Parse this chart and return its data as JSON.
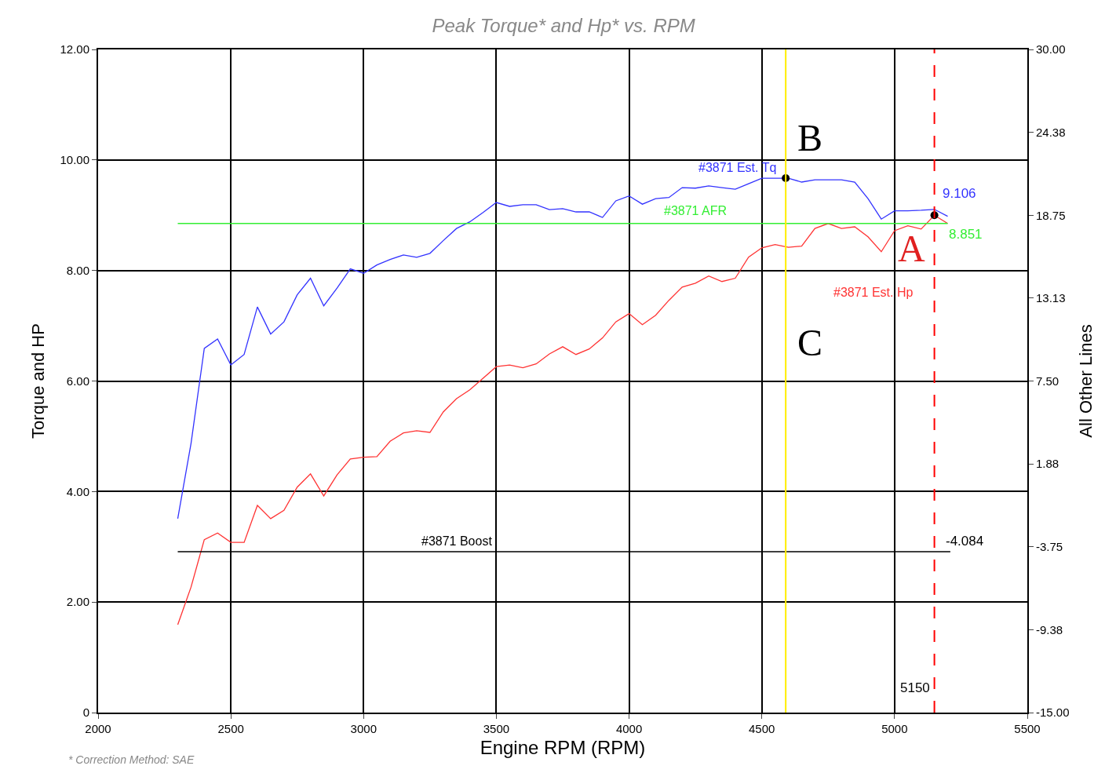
{
  "chart_data": {
    "type": "line",
    "title": "Peak Torque* and Hp* vs. RPM",
    "xlabel": "Engine RPM (RPM)",
    "ylabel": "Torque and HP",
    "y2label": "All Other Lines",
    "x": [
      2300,
      2350,
      2400,
      2450,
      2500,
      2550,
      2600,
      2650,
      2700,
      2750,
      2800,
      2850,
      2900,
      2950,
      3000,
      3050,
      3100,
      3150,
      3200,
      3250,
      3300,
      3350,
      3400,
      3450,
      3500,
      3550,
      3600,
      3650,
      3700,
      3750,
      3800,
      3850,
      3900,
      3950,
      4000,
      4050,
      4100,
      4150,
      4200,
      4250,
      4300,
      4350,
      4400,
      4450,
      4500,
      4550,
      4600,
      4650,
      4700,
      4750,
      4800,
      4850,
      4900,
      4950,
      5000,
      5050,
      5100,
      5150,
      5200
    ],
    "series": [
      {
        "name": "#3871 Est. Tq",
        "color": "#3333ff",
        "values": [
          3.51,
          4.87,
          6.59,
          6.76,
          6.29,
          6.48,
          7.34,
          6.85,
          7.07,
          7.56,
          7.86,
          7.36,
          7.68,
          8.03,
          7.95,
          8.1,
          8.2,
          8.28,
          8.24,
          8.31,
          8.54,
          8.76,
          8.88,
          9.05,
          9.23,
          9.16,
          9.19,
          9.19,
          9.1,
          9.12,
          9.06,
          9.06,
          8.96,
          9.26,
          9.35,
          9.2,
          9.3,
          9.32,
          9.5,
          9.49,
          9.53,
          9.5,
          9.47,
          9.57,
          9.67,
          9.67,
          9.67,
          9.6,
          9.64,
          9.64,
          9.64,
          9.6,
          9.3,
          8.93,
          9.08,
          9.08,
          9.09,
          9.106,
          8.98
        ],
        "value_labels": [
          null,
          null,
          null,
          null,
          null,
          null,
          null,
          null,
          null,
          null,
          null,
          null,
          null,
          null,
          null,
          null,
          null,
          null,
          null,
          null,
          null,
          null,
          null,
          null,
          null,
          null,
          null,
          null,
          null,
          null,
          null,
          null,
          null,
          null,
          null,
          null,
          null,
          null,
          null,
          null,
          null,
          null,
          null,
          null,
          null,
          null,
          null,
          null,
          null,
          null,
          null,
          null,
          null,
          null,
          null,
          null,
          null,
          "9.106",
          null
        ]
      },
      {
        "name": "#3871 Est. Hp",
        "color": "#ff3333",
        "values": [
          1.59,
          2.27,
          3.13,
          3.25,
          3.08,
          3.08,
          3.75,
          3.51,
          3.66,
          4.08,
          4.32,
          3.92,
          4.3,
          4.59,
          4.62,
          4.63,
          4.91,
          5.06,
          5.1,
          5.07,
          5.44,
          5.68,
          5.84,
          6.05,
          6.26,
          6.29,
          6.24,
          6.31,
          6.49,
          6.62,
          6.48,
          6.58,
          6.78,
          7.07,
          7.22,
          7.02,
          7.19,
          7.46,
          7.7,
          7.77,
          7.9,
          7.8,
          7.86,
          8.24,
          8.41,
          8.47,
          8.42,
          8.44,
          8.76,
          8.85,
          8.76,
          8.79,
          8.61,
          8.34,
          8.72,
          8.81,
          8.75,
          9.0,
          8.85
        ]
      },
      {
        "name": "#3871 AFR",
        "color": "#33ee33",
        "x": [
          2300,
          5150,
          5200
        ],
        "values": [
          8.851,
          8.851,
          8.851
        ],
        "value_labels": [
          null,
          "8.851",
          null
        ]
      },
      {
        "name": "#3871 Boost",
        "color": "#000000",
        "axis": "y2",
        "x": [
          2300,
          5150,
          5210
        ],
        "values": [
          -4.084,
          -4.084,
          -4.084
        ],
        "value_labels": [
          null,
          "-4.084",
          null
        ]
      },
      {
        "type": "scatter",
        "color": "#000000",
        "marker": "circle",
        "x": [
          4590,
          5150
        ],
        "values": [
          9.67,
          9.0
        ]
      }
    ],
    "xlim": [
      2000,
      5500
    ],
    "xticks": [
      2000,
      2500,
      3000,
      3500,
      4000,
      4500,
      5000,
      5500
    ],
    "ylim": [
      0,
      12
    ],
    "yticks": [
      0,
      {
        "value": 2,
        "label": "2.00"
      },
      {
        "value": 4,
        "label": "4.00"
      },
      {
        "value": 6,
        "label": "6.00"
      },
      {
        "value": 8,
        "label": "8.00"
      },
      {
        "value": 10,
        "label": "10.00"
      },
      {
        "value": 12,
        "label": "12.00"
      }
    ],
    "y2lim": [
      -15,
      30
    ],
    "y2ticks": [
      {
        "value": -15,
        "label": "-15.00"
      },
      {
        "value": -9.375,
        "label": "-9.38"
      },
      {
        "value": -3.75,
        "label": "-3.75"
      },
      {
        "value": 1.875,
        "label": "1.88"
      },
      {
        "value": 7.5,
        "label": "7.50"
      },
      {
        "value": 13.125,
        "label": "13.13"
      },
      {
        "value": 18.75,
        "label": "18.75"
      },
      {
        "value": 24.375,
        "label": "24.38"
      },
      {
        "value": 30,
        "label": "30.00"
      }
    ],
    "ref_lines": [
      {
        "axis": "x",
        "value": 4590,
        "color": "#ffee00",
        "line_style": "solid"
      },
      {
        "axis": "x",
        "value": 5150,
        "label": "5150",
        "color": "#ff0000",
        "line_style": "dashed"
      }
    ],
    "annotations": [
      "A",
      "B",
      "C",
      "* Correction Method: SAE"
    ],
    "grid": true,
    "legend": false,
    "marker": "none",
    "line_style": "solid"
  }
}
